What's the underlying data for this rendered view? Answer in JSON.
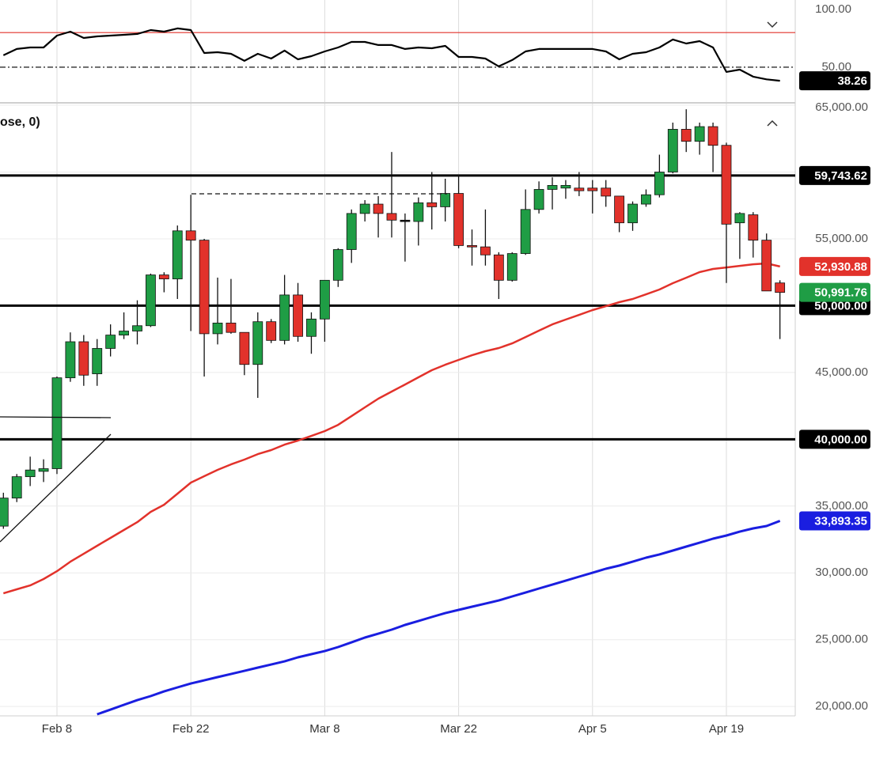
{
  "chart_data": [
    {
      "type": "line",
      "ylim": [
        20.5,
        104.8
      ],
      "yticks": [
        {
          "value": 100,
          "label": "100.00"
        },
        {
          "value": 50,
          "label": "50.00"
        }
      ],
      "levels": [
        {
          "value": 80,
          "color": "#e0302a",
          "style": "solid"
        },
        {
          "value": 50,
          "color": "#000000",
          "style": "dashdot"
        }
      ],
      "color": "#000000",
      "end_label": "38.26",
      "values": [
        60.3,
        65.8,
        67.1,
        67.1,
        77.4,
        80.8,
        75.3,
        76.7,
        77.4,
        78.1,
        78.8,
        82.2,
        80.8,
        83.6,
        82.2,
        62.3,
        63.0,
        61.6,
        55.5,
        61.6,
        57.5,
        64.4,
        56.8,
        59.6,
        63.7,
        67.1,
        71.9,
        71.9,
        69.2,
        69.2,
        65.8,
        67.1,
        66.4,
        68.5,
        58.9,
        58.9,
        57.5,
        50.7,
        56.2,
        63.7,
        65.8,
        65.8,
        65.8,
        65.8,
        65.8,
        63.7,
        56.8,
        61.6,
        63.0,
        67.1,
        74.0,
        70.5,
        72.6,
        67.1,
        45.9,
        47.9,
        41.8,
        39.5,
        38.26
      ]
    },
    {
      "type": "candlestick",
      "title": "ose, 0)",
      "ylim": [
        19300,
        65180
      ],
      "grid": true,
      "categories": [
        null,
        null,
        null,
        null,
        "Feb 8",
        null,
        null,
        null,
        null,
        null,
        null,
        null,
        null,
        null,
        "Feb 22",
        null,
        null,
        null,
        null,
        null,
        null,
        null,
        null,
        null,
        "Mar 8",
        null,
        null,
        null,
        null,
        null,
        null,
        null,
        null,
        null,
        "Mar 22",
        null,
        null,
        null,
        null,
        null,
        null,
        null,
        null,
        null,
        "Apr 5",
        null,
        null,
        null,
        null,
        null,
        null,
        null,
        null,
        null,
        "Apr 19",
        null,
        null,
        null,
        null
      ],
      "yticks": [
        {
          "value": 65000,
          "label": "65,000.00"
        },
        {
          "value": 60000,
          "label": "60,000.00"
        },
        {
          "value": 55000,
          "label": "55,000.00"
        },
        {
          "value": 50000,
          "label": "50,000.00"
        },
        {
          "value": 45000,
          "label": "45,000.00"
        },
        {
          "value": 40000,
          "label": "40,000.00"
        },
        {
          "value": 35000,
          "label": "35,000.00"
        },
        {
          "value": 30000,
          "label": "30,000.00"
        },
        {
          "value": 25000,
          "label": "25,000.00"
        },
        {
          "value": 20000,
          "label": "20,000.00"
        }
      ],
      "candles": {
        "up_color": "#1f9d45",
        "down_color": "#e2322b",
        "end_label": "50,991.76",
        "open": [
          33500,
          35600,
          37200,
          37600,
          37800,
          44600,
          47300,
          44900,
          46800,
          47800,
          48100,
          48500,
          52300,
          52000,
          55600,
          54900,
          47900,
          48700,
          48000,
          45600,
          48800,
          47400,
          50800,
          47700,
          49000,
          51900,
          54200,
          56900,
          57600,
          56900,
          56400,
          56300,
          57700,
          57400,
          58400,
          54500,
          54400,
          53800,
          51900,
          53900,
          57200,
          58700,
          58800,
          58800,
          58800,
          58800,
          58200,
          56200,
          57600,
          58300,
          60000,
          63200,
          62300,
          63400,
          62000,
          56200,
          56800,
          54900,
          51700
        ],
        "high": [
          36000,
          37400,
          38700,
          38500,
          44700,
          48000,
          47800,
          47500,
          48600,
          49500,
          50400,
          52400,
          52500,
          56000,
          58300,
          55000,
          52100,
          52000,
          48000,
          49500,
          49000,
          52300,
          51700,
          49500,
          51900,
          54300,
          57200,
          57900,
          58200,
          61500,
          56900,
          58100,
          60000,
          59500,
          59800,
          55700,
          57200,
          54000,
          54000,
          58700,
          59300,
          59600,
          59400,
          60000,
          59400,
          59400,
          58200,
          57800,
          58700,
          61300,
          63700,
          64700,
          63700,
          63700,
          62200,
          57000,
          57000,
          55400,
          51900
        ],
        "low": [
          33300,
          35300,
          36500,
          36800,
          37400,
          44300,
          44000,
          44000,
          46200,
          47500,
          47100,
          48400,
          51000,
          50500,
          48100,
          44700,
          47100,
          47900,
          44800,
          43100,
          47200,
          47100,
          47300,
          46400,
          47300,
          51400,
          53200,
          56300,
          55100,
          55100,
          53300,
          54500,
          55700,
          56300,
          54300,
          53000,
          53000,
          50500,
          51800,
          53800,
          56900,
          57200,
          58000,
          58200,
          56900,
          57400,
          55500,
          55600,
          57400,
          58100,
          59900,
          61500,
          61300,
          60000,
          51700,
          53500,
          53600,
          51100,
          47500
        ],
        "close": [
          35600,
          37200,
          37700,
          37800,
          44600,
          47300,
          44800,
          46800,
          47800,
          48100,
          48500,
          52300,
          52000,
          55600,
          54900,
          47900,
          48700,
          48000,
          45600,
          48800,
          47400,
          50800,
          47700,
          49000,
          51900,
          54200,
          56900,
          57600,
          56900,
          56400,
          56400,
          57700,
          57400,
          58400,
          54500,
          54400,
          53800,
          51900,
          53900,
          57200,
          58700,
          59000,
          59000,
          58600,
          58600,
          58200,
          56200,
          57600,
          58300,
          60000,
          63200,
          62300,
          63400,
          62000,
          56100,
          56900,
          54900,
          51100,
          50991.76
        ]
      },
      "series": [
        {
          "color": "#e2322b",
          "end_label": "52,930.88",
          "values": [
            28470,
            28770,
            29060,
            29540,
            30130,
            30840,
            31430,
            32030,
            32620,
            33210,
            33800,
            34570,
            35100,
            35930,
            36760,
            37240,
            37710,
            38120,
            38480,
            38890,
            39190,
            39600,
            39900,
            40250,
            40610,
            41080,
            41730,
            42390,
            43040,
            43570,
            44100,
            44640,
            45170,
            45580,
            45940,
            46290,
            46590,
            46830,
            47180,
            47650,
            48130,
            48600,
            48960,
            49310,
            49670,
            49960,
            50260,
            50500,
            50850,
            51210,
            51680,
            52090,
            52510,
            52750,
            52860,
            52980,
            53100,
            53160,
            52930.88
          ]
        },
        {
          "color": "#1a1ee0",
          "end_label": "33,893.35",
          "values": [
            null,
            null,
            null,
            null,
            null,
            null,
            null,
            19420,
            19770,
            20130,
            20480,
            20780,
            21130,
            21430,
            21720,
            21960,
            22200,
            22430,
            22670,
            22910,
            23140,
            23380,
            23680,
            23920,
            24150,
            24450,
            24800,
            25160,
            25450,
            25750,
            26110,
            26400,
            26700,
            26990,
            27230,
            27470,
            27700,
            27940,
            28240,
            28530,
            28830,
            29120,
            29420,
            29720,
            30010,
            30310,
            30550,
            30840,
            31140,
            31380,
            31670,
            31970,
            32260,
            32560,
            32800,
            33090,
            33330,
            33510,
            33893.35
          ]
        }
      ],
      "hlines": [
        {
          "value": 59743.62,
          "label": "59,743.62"
        },
        {
          "value": 50000,
          "label": "50,000.00"
        },
        {
          "value": 40000,
          "label": "40,000.00"
        }
      ]
    }
  ]
}
